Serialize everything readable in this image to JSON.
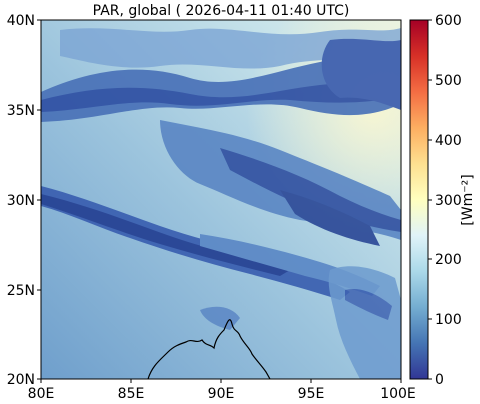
{
  "title": "PAR, global ( 2026-04-11 01:40 UTC)",
  "map": {
    "x_ticks": [
      "80E",
      "85E",
      "90E",
      "95E",
      "100E"
    ],
    "y_ticks": [
      "40N",
      "35N",
      "30N",
      "25N",
      "20N"
    ],
    "lon_range": [
      80,
      100
    ],
    "lat_range": [
      20,
      40
    ]
  },
  "colorbar": {
    "label": "[Wm⁻²]",
    "ticks": [
      "600",
      "500",
      "400",
      "300",
      "200",
      "100",
      "0"
    ],
    "range": [
      0,
      600
    ],
    "colormap": [
      "#313695",
      "#4575b4",
      "#74add1",
      "#abd9e9",
      "#e0f3f8",
      "#ffffbf",
      "#fee090",
      "#fdae61",
      "#f46d43",
      "#d73027",
      "#a50026"
    ]
  }
}
